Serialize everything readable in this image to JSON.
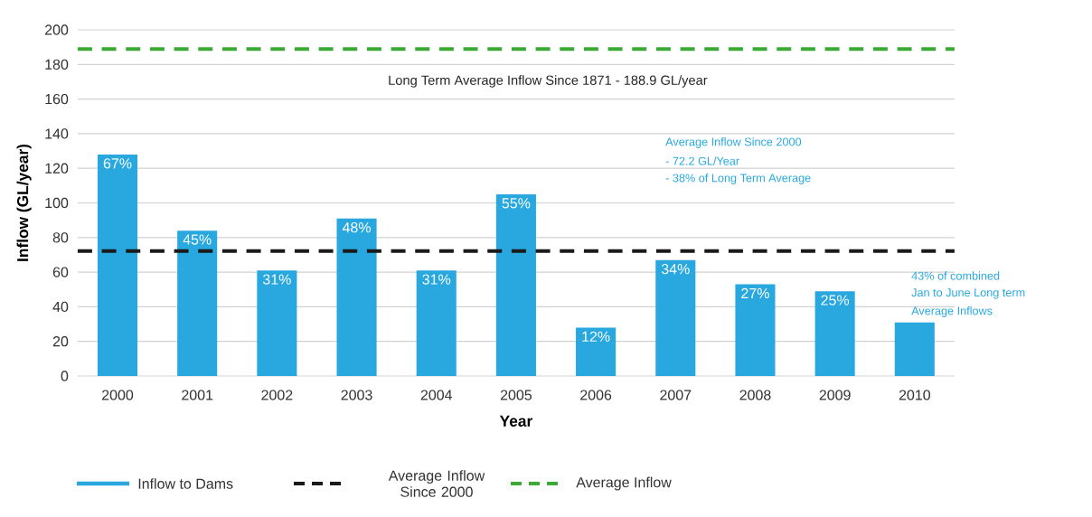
{
  "chart_data": {
    "type": "bar",
    "xlabel": "Year",
    "ylabel": "Inflow (GL/year)",
    "categories": [
      "2000",
      "2001",
      "2002",
      "2003",
      "2004",
      "2005",
      "2006",
      "2007",
      "2008",
      "2009",
      "2010"
    ],
    "series": [
      {
        "name": "Inflow to Dams",
        "color": "#29a8e0",
        "values": [
          128,
          84,
          61,
          91,
          61,
          105,
          28,
          67,
          53,
          49,
          31
        ]
      }
    ],
    "ylim": [
      0,
      200
    ],
    "yticks": [
      0,
      20,
      40,
      60,
      80,
      100,
      120,
      140,
      160,
      180,
      200
    ],
    "grid": "y",
    "ref_lines": [
      {
        "axis": "y",
        "value": 72.2,
        "label": "Average Inflow Since 2000",
        "color": "#1a1a1a",
        "line_style": "dashed"
      },
      {
        "axis": "y",
        "value": 188.9,
        "label": "Average Inflow",
        "color": "#3aaa35",
        "line_style": "dashed"
      }
    ],
    "annotations": [
      "Long Term Average Inflow Since 1871 - 188.9 GL/year",
      "Average Inflow Since 2000",
      "- 72.2 GL/Year",
      "- 38% of Long Term Average",
      "43% of combined",
      "Jan to June Long term",
      "Average Inflows",
      {
        "text": "67%",
        "x": "2000",
        "y": 128
      },
      {
        "text": "45%",
        "x": "2001",
        "y": 84
      },
      {
        "text": "31%",
        "x": "2002",
        "y": 61
      },
      {
        "text": "48%",
        "x": "2003",
        "y": 91
      },
      {
        "text": "31%",
        "x": "2004",
        "y": 61
      },
      {
        "text": "55%",
        "x": "2005",
        "y": 105
      },
      {
        "text": "12%",
        "x": "2006",
        "y": 28
      },
      {
        "text": "34%",
        "x": "2007",
        "y": 67
      },
      {
        "text": "27%",
        "x": "2008",
        "y": 53
      },
      {
        "text": "25%",
        "x": "2009",
        "y": 49
      }
    ],
    "legend": "bottom"
  }
}
